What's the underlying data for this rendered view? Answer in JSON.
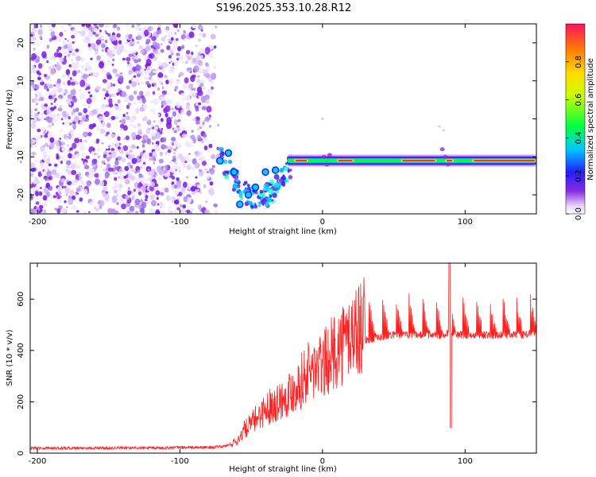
{
  "title": "S196.2025.353.10.28.R12",
  "chart_data": [
    {
      "type": "heatmap",
      "name": "spectrogram",
      "xlabel": "Height of straight line (km)",
      "ylabel": "Frequency (Hz)",
      "xlim": [
        -205,
        150
      ],
      "ylim": [
        -25,
        25
      ],
      "xticks": [
        -200,
        -100,
        0,
        100
      ],
      "yticks": [
        -20,
        -10,
        0,
        10,
        20
      ],
      "colorbar": {
        "label": "Normalized spectral amplitude",
        "range": [
          0,
          1
        ],
        "ticks": [
          0.0,
          0.2,
          0.4,
          0.6,
          0.8
        ],
        "tick_labels": [
          "0.0",
          "0.2",
          "0.4",
          "0.6",
          "0.8"
        ]
      },
      "features": {
        "noise_region_x": [
          -205,
          -70
        ],
        "carrier_frequency_hz": -11,
        "carrier_start_x": -25,
        "scatter_blobs": [
          {
            "x": -58,
            "y": -22.5,
            "amp": 0.3
          },
          {
            "x": -47,
            "y": -18,
            "amp": 0.25
          },
          {
            "x": -52,
            "y": -20,
            "amp": 0.25
          },
          {
            "x": -40,
            "y": -14,
            "amp": 0.3
          },
          {
            "x": -33,
            "y": -13.5,
            "amp": 0.3
          },
          {
            "x": -62,
            "y": -14,
            "amp": 0.3
          },
          {
            "x": -66,
            "y": -9,
            "amp": 0.3
          },
          {
            "x": -72,
            "y": -11,
            "amp": 0.2
          }
        ]
      }
    },
    {
      "type": "line",
      "name": "snr",
      "xlabel": "Height of straight line (km)",
      "ylabel": "SNR (10 * v/v)",
      "xlim": [
        -205,
        150
      ],
      "ylim": [
        0,
        740
      ],
      "xticks": [
        -200,
        -100,
        0,
        100
      ],
      "yticks": [
        0,
        200,
        400,
        600
      ],
      "color": "#ff2020",
      "series": [
        {
          "name": "SNR",
          "x": [
            -205,
            -180,
            -150,
            -120,
            -100,
            -80,
            -70,
            -60,
            -55,
            -50,
            -45,
            -40,
            -35,
            -30,
            -25,
            -20,
            -15,
            -10,
            -5,
            0,
            5,
            10,
            15,
            20,
            25,
            30,
            40,
            50,
            60,
            70,
            80,
            85,
            88,
            90,
            92,
            95,
            100,
            110,
            120,
            130,
            140,
            150
          ],
          "y": [
            20,
            20,
            20,
            20,
            22,
            22,
            25,
            40,
            80,
            100,
            130,
            150,
            170,
            180,
            200,
            220,
            250,
            280,
            290,
            300,
            330,
            360,
            380,
            410,
            430,
            440,
            450,
            460,
            460,
            460,
            460,
            460,
            470,
            460,
            460,
            460,
            460,
            460,
            460,
            460,
            460,
            470
          ]
        }
      ],
      "notable": {
        "dip_x": 90,
        "dip_y": 100,
        "spike_x": 89,
        "spike_y": 740
      }
    }
  ],
  "colors": {
    "noise": "#8a2be2",
    "line": "#ff2020",
    "axis": "#000000"
  }
}
